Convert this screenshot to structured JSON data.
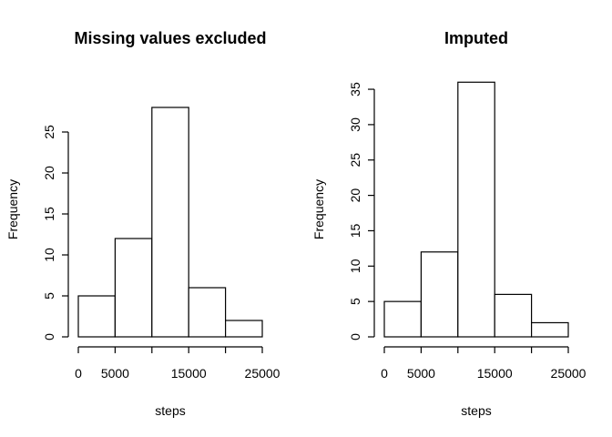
{
  "chart_data": [
    {
      "type": "bar",
      "title": "Missing values excluded",
      "xlabel": "steps",
      "ylabel": "Frequency",
      "bins": [
        [
          0,
          5000
        ],
        [
          5000,
          10000
        ],
        [
          10000,
          15000
        ],
        [
          15000,
          20000
        ],
        [
          20000,
          25000
        ]
      ],
      "values": [
        5,
        12,
        28,
        6,
        2
      ],
      "xlim": [
        0,
        25000
      ],
      "x_ticks": [
        0,
        5000,
        15000,
        25000
      ],
      "x_tick_labels": [
        "0",
        "5000",
        "15000",
        "25000"
      ],
      "x_tick_marks": [
        0,
        5000,
        10000,
        15000,
        20000,
        25000
      ],
      "y_ticks": [
        0,
        5,
        10,
        15,
        20,
        25
      ],
      "ylim": [
        0,
        28
      ]
    },
    {
      "type": "bar",
      "title": "Imputed",
      "xlabel": "steps",
      "ylabel": "Frequency",
      "bins": [
        [
          0,
          5000
        ],
        [
          5000,
          10000
        ],
        [
          10000,
          15000
        ],
        [
          15000,
          20000
        ],
        [
          20000,
          25000
        ]
      ],
      "values": [
        5,
        12,
        36,
        6,
        2
      ],
      "xlim": [
        0,
        25000
      ],
      "x_ticks": [
        0,
        5000,
        15000,
        25000
      ],
      "x_tick_labels": [
        "0",
        "5000",
        "15000",
        "25000"
      ],
      "x_tick_marks": [
        0,
        5000,
        10000,
        15000,
        20000,
        25000
      ],
      "y_ticks": [
        0,
        5,
        10,
        15,
        20,
        25,
        30,
        35
      ],
      "ylim": [
        0,
        36
      ]
    }
  ]
}
